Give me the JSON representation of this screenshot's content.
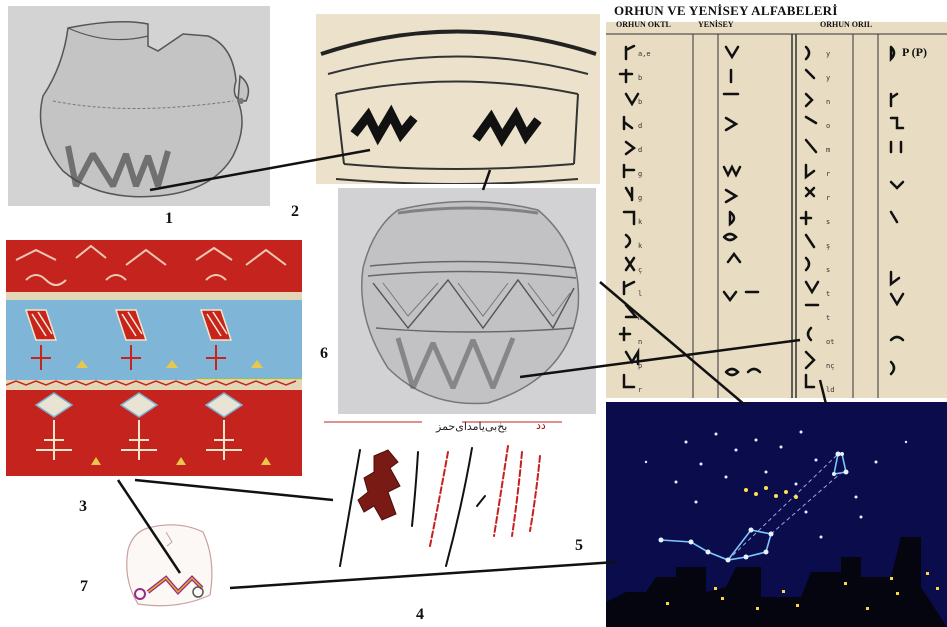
{
  "figure_numbers": {
    "n1": "1",
    "n2": "2",
    "n3": "3",
    "n4": "4",
    "n5": "5",
    "n6": "6",
    "n7": "7"
  },
  "alphabet_chart": {
    "title": "ORHUN VE YENİSEY ALFABELERİ",
    "col_orhun_okt": "ORHUN OKTL",
    "col_yenisey": "YENİSEY",
    "col_orhun_oril": "ORHUN ORIL"
  },
  "inscription": {
    "arabic_text": "بخ‌بی‌یامد‌ای‌حمز",
    "red_mark": "دد"
  },
  "colors": {
    "sketch_bg": "#d9d9d9",
    "rug_red": "#c8241c",
    "rug_blue": "#7fb6d8",
    "paper": "#e8dcc4",
    "night_sky": "#0a0a4a",
    "star": "#e6f2ff",
    "constellation_line": "#7cc8ff",
    "yellow_stars": "#ffe34d",
    "connector": "#111111"
  }
}
